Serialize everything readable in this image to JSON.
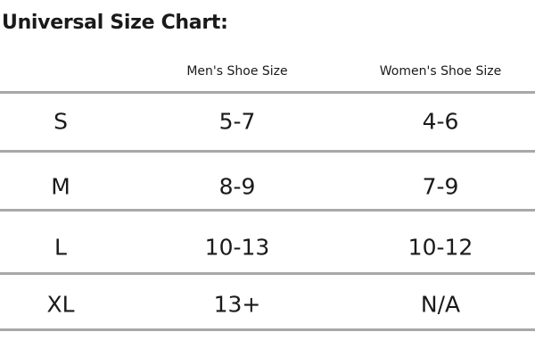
{
  "title": "Universal Size Chart:",
  "columns": [
    "",
    "Men's Shoe Size",
    "Women's Shoe Size"
  ],
  "rows": [
    [
      "S",
      "5-7",
      "4-6"
    ],
    [
      "M",
      "8-9",
      "7-9"
    ],
    [
      "L",
      "10-13",
      "10-12"
    ],
    [
      "XL",
      "13+",
      "N/A"
    ]
  ]
}
